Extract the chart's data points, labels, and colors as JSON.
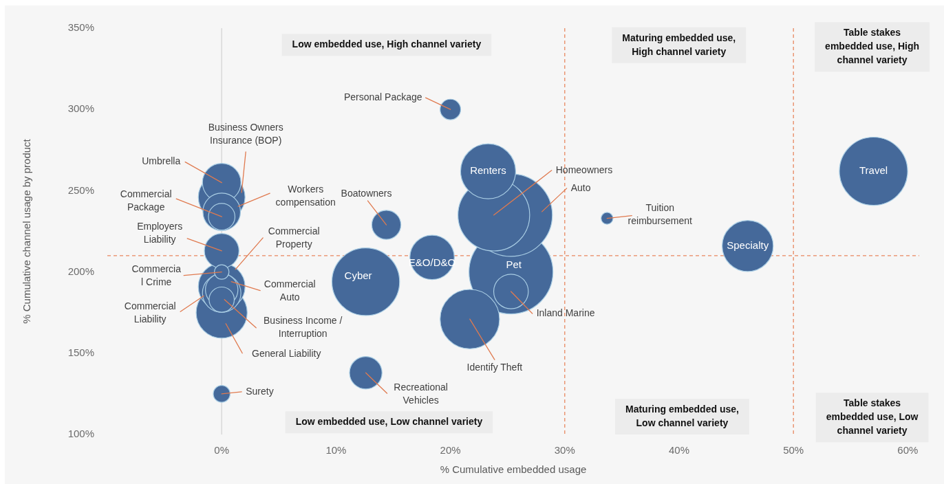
{
  "chart_data": {
    "type": "bubble",
    "xlabel": "% Cumulative embedded usage",
    "ylabel": "% Cumulative channel usage by product",
    "xlim": [
      -10,
      61
    ],
    "xticks": [
      {
        "value": 0,
        "label": "0%"
      },
      {
        "value": 10,
        "label": "10%"
      },
      {
        "value": 20,
        "label": "20%"
      },
      {
        "value": 30,
        "label": "30%"
      },
      {
        "value": 40,
        "label": "40%"
      },
      {
        "value": 50,
        "label": "50%"
      },
      {
        "value": 60,
        "label": "60%"
      }
    ],
    "ylim": [
      100,
      350
    ],
    "yticks": [
      {
        "value": 100,
        "label": "100%"
      },
      {
        "value": 150,
        "label": "150%"
      },
      {
        "value": 200,
        "label": "200%"
      },
      {
        "value": 250,
        "label": "250%"
      },
      {
        "value": 300,
        "label": "300%"
      },
      {
        "value": 350,
        "label": "350%"
      }
    ],
    "ref_lines": [
      {
        "axis": "x",
        "value": 0,
        "color": "#d4d4d4",
        "line_style": "solid"
      },
      {
        "axis": "x",
        "value": 30,
        "color": "#e8875f",
        "line_style": "dashed"
      },
      {
        "axis": "x",
        "value": 50,
        "color": "#e8875f",
        "line_style": "dashed"
      },
      {
        "axis": "y",
        "value": 210,
        "color": "#e8875f",
        "line_style": "dashed"
      }
    ],
    "annotations": [
      "Low embedded use, High channel variety",
      "Maturing embedded use,\nHigh channel variety",
      "Table stakes\nembedded use, High\nchannel variety",
      "Low embedded use, Low channel variety",
      "Maturing embedded use,\nLow channel variety",
      "Table stakes\nembedded use, Low\nchannel variety"
    ],
    "series": [
      {
        "name": "Personal Package",
        "color": "#45699a",
        "x": [
          20
        ],
        "values": [
          300
        ],
        "sizes": [
          0.06
        ]
      },
      {
        "name": "Business Owners\nInsurance (BOP)",
        "color": "#45699a",
        "x": [
          0
        ],
        "values": [
          246
        ],
        "sizes": [
          0.31
        ]
      },
      {
        "name": "Umbrella",
        "color": "#45699a",
        "x": [
          0
        ],
        "values": [
          255
        ],
        "sizes": [
          0.21
        ]
      },
      {
        "name": "Workers\ncompensation",
        "color": "#45699a",
        "x": [
          0
        ],
        "values": [
          237
        ],
        "sizes": [
          0.2
        ]
      },
      {
        "name": "Commercial\nPackage",
        "color": "#45699a",
        "x": [
          0
        ],
        "values": [
          234
        ],
        "sizes": [
          0.1
        ]
      },
      {
        "name": "Boatowners",
        "color": "#45699a",
        "x": [
          14.4
        ],
        "values": [
          229
        ],
        "sizes": [
          0.12
        ]
      },
      {
        "name": "Renters",
        "color": "#45699a",
        "x": [
          23.3
        ],
        "values": [
          262
        ],
        "sizes": [
          0.43
        ]
      },
      {
        "name": "Homeowners",
        "color": "#45699a",
        "x": [
          23.8
        ],
        "values": [
          235
        ],
        "sizes": [
          0.73
        ]
      },
      {
        "name": "Auto",
        "color": "#45699a",
        "x": [
          25.3
        ],
        "values": [
          235
        ],
        "sizes": [
          0.97
        ]
      },
      {
        "name": "Tuition\nreimbursement",
        "color": "#45699a",
        "x": [
          33.7
        ],
        "values": [
          233
        ],
        "sizes": [
          0.02
        ]
      },
      {
        "name": "Specialty",
        "color": "#45699a",
        "x": [
          46
        ],
        "values": [
          216
        ],
        "sizes": [
          0.37
        ]
      },
      {
        "name": "Travel",
        "color": "#45699a",
        "x": [
          57
        ],
        "values": [
          262
        ],
        "sizes": [
          0.66
        ]
      },
      {
        "name": "Employers\nLiability",
        "color": "#45699a",
        "x": [
          0
        ],
        "values": [
          213
        ],
        "sizes": [
          0.17
        ]
      },
      {
        "name": "Commercial\nProperty",
        "color": "#45699a",
        "x": [
          0
        ],
        "values": [
          191
        ],
        "sizes": [
          0.31
        ]
      },
      {
        "name": "E&O/D&O",
        "color": "#45699a",
        "x": [
          18.4
        ],
        "values": [
          209
        ],
        "sizes": [
          0.28
        ]
      },
      {
        "name": "Commercia\nl Crime",
        "color": "#45699a",
        "x": [
          0
        ],
        "values": [
          200
        ],
        "sizes": [
          0.03
        ]
      },
      {
        "name": "Cyber",
        "color": "#45699a",
        "x": [
          12.6
        ],
        "values": [
          194
        ],
        "sizes": [
          0.65
        ]
      },
      {
        "name": "Pet",
        "color": "#45699a",
        "x": [
          25.3
        ],
        "values": [
          200
        ],
        "sizes": [
          1
        ]
      },
      {
        "name": "Commercial\nAuto",
        "color": "#45699a",
        "x": [
          0
        ],
        "values": [
          189
        ],
        "sizes": [
          0.15
        ]
      },
      {
        "name": "Inland Marine",
        "color": "#45699a",
        "x": [
          25.3
        ],
        "values": [
          188
        ],
        "sizes": [
          0.17
        ]
      },
      {
        "name": "Commercial\nLiability",
        "color": "#45699a",
        "x": [
          0
        ],
        "values": [
          187
        ],
        "sizes": [
          0.21
        ]
      },
      {
        "name": "Business Income /\nInterruption",
        "color": "#45699a",
        "x": [
          0
        ],
        "values": [
          183
        ],
        "sizes": [
          0.09
        ]
      },
      {
        "name": "Identify Theft",
        "color": "#45699a",
        "x": [
          21.7
        ],
        "values": [
          171
        ],
        "sizes": [
          0.5
        ]
      },
      {
        "name": "General Liability",
        "color": "#45699a",
        "x": [
          0
        ],
        "values": [
          175
        ],
        "sizes": [
          0.37
        ]
      },
      {
        "name": "Recreational\nVehicles",
        "color": "#45699a",
        "x": [
          12.6
        ],
        "values": [
          138
        ],
        "sizes": [
          0.15
        ]
      },
      {
        "name": "Surety",
        "color": "#45699a",
        "x": [
          0
        ],
        "values": [
          125
        ],
        "sizes": [
          0.04
        ]
      }
    ]
  }
}
